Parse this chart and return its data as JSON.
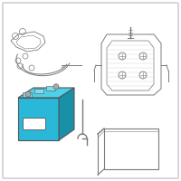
{
  "bg_color": "#ffffff",
  "border_color": "#d0d0d0",
  "battery_front": "#29b8d8",
  "battery_right": "#1a8fa8",
  "battery_top": "#4dd0e8",
  "battery_top_detail": "#80dcee",
  "line_color": "#555555",
  "part_line_color": "#7a7a7a",
  "fig_bg": "#f7f7f7"
}
